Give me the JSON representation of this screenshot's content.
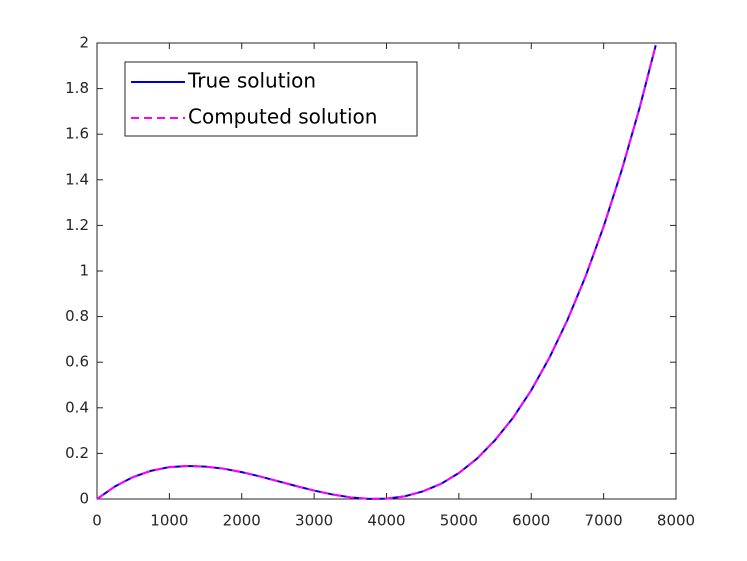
{
  "chart_data": {
    "type": "line",
    "x": [
      0,
      250,
      500,
      750,
      1000,
      1250,
      1500,
      1750,
      2000,
      2250,
      2500,
      2750,
      3000,
      3250,
      3500,
      3750,
      4000,
      4250,
      4500,
      4750,
      5000,
      5250,
      5500,
      5750,
      6000,
      6250,
      6500,
      6750,
      7000,
      7250,
      7500,
      7720
    ],
    "series": [
      {
        "name": "True solution",
        "color": "#0000cc",
        "dash": "solid",
        "values": [
          0,
          0.0557,
          0.0965,
          0.124,
          0.14,
          0.145,
          0.142,
          0.133,
          0.118,
          0.099,
          0.078,
          0.057,
          0.037,
          0.02,
          0.0074,
          0.0006,
          0.0015,
          0.0117,
          0.033,
          0.066,
          0.114,
          0.177,
          0.258,
          0.357,
          0.477,
          0.619,
          0.785,
          0.976,
          1.195,
          1.442,
          1.719,
          1.99
        ]
      },
      {
        "name": "Computed solution",
        "color": "#ff00ff",
        "dash": "dashed",
        "values": [
          0,
          0.0557,
          0.0965,
          0.124,
          0.14,
          0.145,
          0.142,
          0.133,
          0.118,
          0.099,
          0.078,
          0.057,
          0.037,
          0.02,
          0.0074,
          0.0006,
          0.0015,
          0.0117,
          0.033,
          0.066,
          0.114,
          0.177,
          0.258,
          0.357,
          0.477,
          0.619,
          0.785,
          0.976,
          1.195,
          1.442,
          1.719,
          1.99
        ]
      }
    ],
    "xlim": [
      0,
      8000
    ],
    "xticks": [
      0,
      1000,
      2000,
      3000,
      4000,
      5000,
      6000,
      7000,
      8000
    ],
    "ylim": [
      0,
      2
    ],
    "yticks": [
      0,
      0.2,
      0.4,
      0.6,
      0.8,
      1,
      1.2,
      1.4,
      1.6,
      1.8,
      2
    ],
    "legend": "upper-left",
    "grid": false
  }
}
